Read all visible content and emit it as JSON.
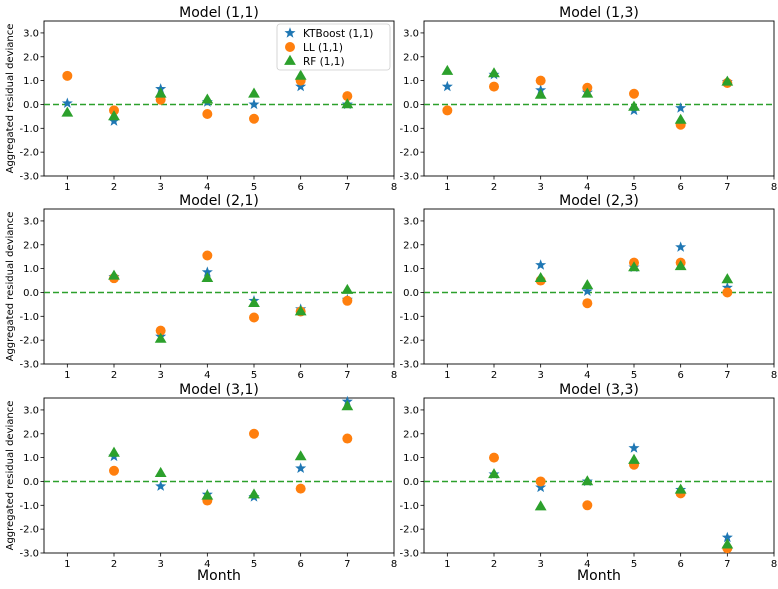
{
  "chart_data": [
    {
      "type": "scatter",
      "title": "Model (1,1)",
      "xlabel": "",
      "ylabel": "Aggregated residual deviance",
      "xlim": [
        0.5,
        8
      ],
      "ylim": [
        -3.0,
        3.5
      ],
      "xticks": [
        "1",
        "2",
        "3",
        "4",
        "5",
        "6",
        "7",
        "8"
      ],
      "yticks": [
        "-3.0",
        "-2.0",
        "-1.0",
        "0.0",
        "1.0",
        "2.0",
        "3.0"
      ],
      "reference_line": {
        "y": 0,
        "style": "dashed",
        "color": "#2ca02c"
      },
      "legend": {
        "placement": "top-right",
        "entries": [
          "KTBoost (1,1)",
          "LL (1,1)",
          "RF (1,1)"
        ]
      },
      "series": [
        {
          "name": "KTBoost (1,1)",
          "marker": "star",
          "color": "#1f77b4",
          "x": [
            1,
            2,
            3,
            4,
            5,
            6,
            7
          ],
          "y": [
            0.05,
            -0.7,
            0.65,
            0.1,
            0.0,
            0.75,
            0.0
          ]
        },
        {
          "name": "LL (1,1)",
          "marker": "circle",
          "color": "#ff7f0e",
          "x": [
            1,
            2,
            3,
            4,
            5,
            6,
            7
          ],
          "y": [
            1.2,
            -0.25,
            0.2,
            -0.4,
            -0.6,
            1.0,
            0.35
          ]
        },
        {
          "name": "RF (1,1)",
          "marker": "triangle",
          "color": "#2ca02c",
          "x": [
            1,
            2,
            3,
            4,
            5,
            6,
            7
          ],
          "y": [
            -0.35,
            -0.5,
            0.45,
            0.2,
            0.45,
            1.2,
            0.0
          ]
        }
      ]
    },
    {
      "type": "scatter",
      "title": "Model (1,3)",
      "xlabel": "",
      "ylabel": "",
      "xlim": [
        0.5,
        8
      ],
      "ylim": [
        -3.0,
        3.5
      ],
      "xticks": [
        "1",
        "2",
        "3",
        "4",
        "5",
        "6",
        "7",
        "8"
      ],
      "yticks": [
        "-3.0",
        "-2.0",
        "-1.0",
        "0.0",
        "1.0",
        "2.0",
        "3.0"
      ],
      "reference_line": {
        "y": 0,
        "style": "dashed",
        "color": "#2ca02c"
      },
      "series": [
        {
          "marker": "star",
          "color": "#1f77b4",
          "x": [
            1,
            2,
            3,
            4,
            5,
            6,
            7
          ],
          "y": [
            0.75,
            1.25,
            0.6,
            0.5,
            -0.25,
            -0.15,
            0.95
          ]
        },
        {
          "marker": "circle",
          "color": "#ff7f0e",
          "x": [
            1,
            2,
            3,
            4,
            5,
            6,
            7
          ],
          "y": [
            -0.25,
            0.75,
            1.0,
            0.7,
            0.45,
            -0.85,
            0.9
          ]
        },
        {
          "marker": "triangle",
          "color": "#2ca02c",
          "x": [
            1,
            2,
            3,
            4,
            5,
            6,
            7
          ],
          "y": [
            1.4,
            1.3,
            0.4,
            0.45,
            -0.1,
            -0.65,
            0.95
          ]
        }
      ]
    },
    {
      "type": "scatter",
      "title": "Model (2,1)",
      "xlabel": "",
      "ylabel": "Aggregated residual deviance",
      "xlim": [
        0.5,
        8
      ],
      "ylim": [
        -3.0,
        3.5
      ],
      "xticks": [
        "1",
        "2",
        "3",
        "4",
        "5",
        "6",
        "7",
        "8"
      ],
      "yticks": [
        "-3.0",
        "-2.0",
        "-1.0",
        "0.0",
        "1.0",
        "2.0",
        "3.0"
      ],
      "reference_line": {
        "y": 0,
        "style": "dashed",
        "color": "#2ca02c"
      },
      "series": [
        {
          "marker": "star",
          "color": "#1f77b4",
          "x": [
            2,
            3,
            4,
            5,
            6,
            7
          ],
          "y": [
            0.65,
            -1.85,
            0.85,
            -0.35,
            -0.7,
            -0.3
          ]
        },
        {
          "marker": "circle",
          "color": "#ff7f0e",
          "x": [
            2,
            3,
            4,
            5,
            6,
            7
          ],
          "y": [
            0.6,
            -1.6,
            1.55,
            -1.05,
            -0.8,
            -0.35
          ]
        },
        {
          "marker": "triangle",
          "color": "#2ca02c",
          "x": [
            2,
            3,
            4,
            5,
            6,
            7
          ],
          "y": [
            0.7,
            -1.95,
            0.6,
            -0.45,
            -0.8,
            0.1
          ]
        }
      ]
    },
    {
      "type": "scatter",
      "title": "Model (2,3)",
      "xlabel": "",
      "ylabel": "",
      "xlim": [
        0.5,
        8
      ],
      "ylim": [
        -3.0,
        3.5
      ],
      "xticks": [
        "1",
        "2",
        "3",
        "4",
        "5",
        "6",
        "7",
        "8"
      ],
      "yticks": [
        "-3.0",
        "-2.0",
        "-1.0",
        "0.0",
        "1.0",
        "2.0",
        "3.0"
      ],
      "reference_line": {
        "y": 0,
        "style": "dashed",
        "color": "#2ca02c"
      },
      "series": [
        {
          "marker": "star",
          "color": "#1f77b4",
          "x": [
            3,
            4,
            5,
            6,
            7
          ],
          "y": [
            1.15,
            0.05,
            1.05,
            1.9,
            0.2
          ]
        },
        {
          "marker": "circle",
          "color": "#ff7f0e",
          "x": [
            3,
            4,
            5,
            6,
            7
          ],
          "y": [
            0.5,
            -0.45,
            1.25,
            1.25,
            0.0
          ]
        },
        {
          "marker": "triangle",
          "color": "#2ca02c",
          "x": [
            3,
            4,
            5,
            6,
            7
          ],
          "y": [
            0.6,
            0.3,
            1.05,
            1.1,
            0.55
          ]
        }
      ]
    },
    {
      "type": "scatter",
      "title": "Model (3,1)",
      "xlabel": "Month",
      "ylabel": "Aggregated residual deviance",
      "xlim": [
        0.5,
        8
      ],
      "ylim": [
        -3.0,
        3.5
      ],
      "xticks": [
        "1",
        "2",
        "3",
        "4",
        "5",
        "6",
        "7",
        "8"
      ],
      "yticks": [
        "-3.0",
        "-2.0",
        "-1.0",
        "0.0",
        "1.0",
        "2.0",
        "3.0"
      ],
      "reference_line": {
        "y": 0,
        "style": "dashed",
        "color": "#2ca02c"
      },
      "series": [
        {
          "marker": "star",
          "color": "#1f77b4",
          "x": [
            2,
            3,
            4,
            5,
            6,
            7
          ],
          "y": [
            1.05,
            -0.2,
            -0.55,
            -0.65,
            0.55,
            3.35
          ]
        },
        {
          "marker": "circle",
          "color": "#ff7f0e",
          "x": [
            2,
            3,
            4,
            5,
            6,
            7
          ],
          "y": [
            0.45,
            null,
            -0.8,
            2.0,
            -0.3,
            1.8
          ]
        },
        {
          "marker": "triangle",
          "color": "#2ca02c",
          "x": [
            2,
            3,
            4,
            5,
            6,
            7
          ],
          "y": [
            1.2,
            0.35,
            -0.6,
            -0.55,
            1.05,
            3.15
          ]
        }
      ]
    },
    {
      "type": "scatter",
      "title": "Model (3,3)",
      "xlabel": "Month",
      "ylabel": "",
      "xlim": [
        0.5,
        8
      ],
      "ylim": [
        -3.0,
        3.5
      ],
      "xticks": [
        "1",
        "2",
        "3",
        "4",
        "5",
        "6",
        "7",
        "8"
      ],
      "yticks": [
        "-3.0",
        "-2.0",
        "-1.0",
        "0.0",
        "1.0",
        "2.0",
        "3.0"
      ],
      "reference_line": {
        "y": 0,
        "style": "dashed",
        "color": "#2ca02c"
      },
      "series": [
        {
          "marker": "star",
          "color": "#1f77b4",
          "x": [
            2,
            3,
            4,
            5,
            6,
            7
          ],
          "y": [
            0.3,
            -0.25,
            0.0,
            1.4,
            -0.35,
            -2.35
          ]
        },
        {
          "marker": "circle",
          "color": "#ff7f0e",
          "x": [
            2,
            3,
            4,
            5,
            6,
            7
          ],
          "y": [
            1.0,
            0.0,
            -1.0,
            0.7,
            -0.5,
            -2.8
          ]
        },
        {
          "marker": "triangle",
          "color": "#2ca02c",
          "x": [
            2,
            3,
            4,
            5,
            6,
            7
          ],
          "y": [
            0.3,
            -1.05,
            0.0,
            0.9,
            -0.35,
            -2.65
          ]
        }
      ]
    }
  ]
}
